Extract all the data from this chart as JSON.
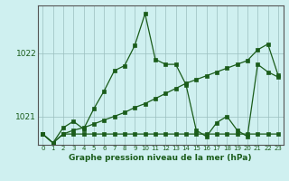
{
  "title": "Graphe pression niveau de la mer (hPa)",
  "background_color": "#cff0f0",
  "grid_color": "#9bbfbf",
  "line_color": "#1a5c1a",
  "ylim": [
    1020.55,
    1022.75
  ],
  "yticks": [
    1021.0,
    1022.0
  ],
  "y_main": [
    1020.72,
    1020.58,
    1020.82,
    1020.92,
    1020.8,
    1021.12,
    1021.4,
    1021.72,
    1021.8,
    1022.12,
    1022.62,
    1021.9,
    1021.82,
    1021.82,
    1021.5,
    1020.78,
    1020.68,
    1020.9,
    1021.0,
    1020.78,
    1020.68,
    1021.82,
    1021.7,
    1021.62
  ],
  "y_flat": [
    1020.72,
    1020.58,
    1020.72,
    1020.72,
    1020.72,
    1020.72,
    1020.72,
    1020.72,
    1020.72,
    1020.72,
    1020.72,
    1020.72,
    1020.72,
    1020.72,
    1020.72,
    1020.72,
    1020.72,
    1020.72,
    1020.72,
    1020.72,
    1020.72,
    1020.72,
    1020.72,
    1020.72
  ],
  "y_trend": [
    1020.72,
    1020.58,
    1020.72,
    1020.78,
    1020.82,
    1020.88,
    1020.94,
    1021.0,
    1021.06,
    1021.14,
    1021.2,
    1021.28,
    1021.36,
    1021.44,
    1021.52,
    1021.58,
    1021.64,
    1021.7,
    1021.76,
    1021.82,
    1021.88,
    1022.05,
    1022.14,
    1021.65
  ],
  "x_ticks": [
    0,
    1,
    2,
    3,
    4,
    5,
    6,
    7,
    8,
    9,
    10,
    11,
    12,
    13,
    14,
    15,
    16,
    17,
    18,
    19,
    20,
    21,
    22,
    23
  ],
  "x_tick_labels": [
    "0",
    "1",
    "2",
    "3",
    "4",
    "5",
    "6",
    "7",
    "8",
    "9",
    "10",
    "11",
    "12",
    "13",
    "14",
    "15",
    "16",
    "17",
    "18",
    "19",
    "20",
    "21",
    "22",
    "23"
  ]
}
